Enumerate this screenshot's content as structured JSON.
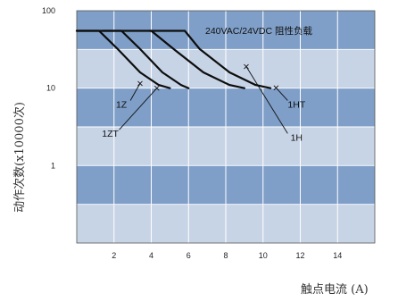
{
  "chart_data": {
    "type": "line",
    "title": "",
    "xlabel": "触点电流 (A)",
    "ylabel": "动作次数(x10000次)",
    "y_scale": "log",
    "xlim": [
      0,
      16
    ],
    "ylim": [
      0.1,
      100
    ],
    "x_ticks": [
      2,
      4,
      6,
      8,
      10,
      12,
      14
    ],
    "y_ticks": [
      {
        "value": 100,
        "label": "100"
      },
      {
        "value": 10,
        "label": "10"
      },
      {
        "value": 1,
        "label": "1"
      }
    ],
    "grid": true,
    "background_colors": [
      "#7f9fc8",
      "#c7d4e6"
    ],
    "annotation": "240VAC/24VDC 阻性负载",
    "series": [
      {
        "name": "1Z",
        "label_at": {
          "x": 2.4,
          "y": 5.6
        },
        "pointer_to": {
          "x": 3.4,
          "y": 11.5
        },
        "points": [
          [
            0,
            55
          ],
          [
            1.2,
            55
          ],
          [
            2.2,
            32
          ],
          [
            3.4,
            16
          ],
          [
            4.4,
            11
          ],
          [
            5.0,
            10
          ]
        ]
      },
      {
        "name": "1ZT",
        "label_at": {
          "x": 1.8,
          "y": 2.35
        },
        "pointer_to": {
          "x": 4.3,
          "y": 10
        },
        "points": [
          [
            0,
            55
          ],
          [
            2.4,
            55
          ],
          [
            3.4,
            32
          ],
          [
            4.6,
            16
          ],
          [
            5.6,
            11
          ],
          [
            6.0,
            10
          ]
        ]
      },
      {
        "name": "1H",
        "label_at": {
          "x": 11.8,
          "y": 2.1
        },
        "pointer_to": {
          "x": 9.1,
          "y": 19
        },
        "points": [
          [
            1.4,
            55
          ],
          [
            4.0,
            55
          ],
          [
            5.2,
            32
          ],
          [
            6.8,
            16
          ],
          [
            8.2,
            11
          ],
          [
            9.0,
            10
          ]
        ]
      },
      {
        "name": "1HT",
        "label_at": {
          "x": 11.8,
          "y": 5.6
        },
        "pointer_to": {
          "x": 10.7,
          "y": 10.1
        },
        "points": [
          [
            3.9,
            55
          ],
          [
            5.8,
            55
          ],
          [
            6.6,
            32
          ],
          [
            8.2,
            16
          ],
          [
            9.6,
            11
          ],
          [
            10.4,
            10
          ]
        ]
      }
    ]
  }
}
